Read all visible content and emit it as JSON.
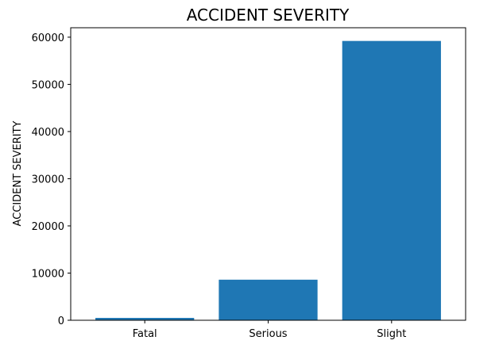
{
  "chart_data": {
    "type": "bar",
    "title": "ACCIDENT SEVERITY",
    "xlabel": "",
    "ylabel": "ACCIDENT SEVERITY",
    "categories": [
      "Fatal",
      "Serious",
      "Slight"
    ],
    "values": [
      500,
      8600,
      59200
    ],
    "ylim": [
      0,
      62000
    ],
    "yticks": [
      0,
      10000,
      20000,
      30000,
      40000,
      50000,
      60000
    ],
    "bar_color": "#1f77b4",
    "grid": false
  }
}
